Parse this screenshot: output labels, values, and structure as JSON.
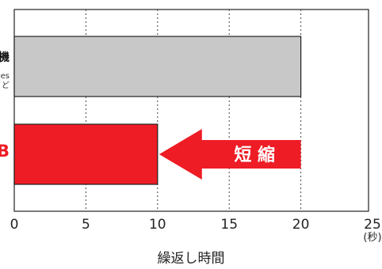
{
  "chart_data": {
    "type": "bar",
    "orientation": "horizontal",
    "xlabel": "繰返し時間",
    "x_unit_label": "(秒)",
    "xlim": [
      0,
      25
    ],
    "xticks": [
      "0",
      "5",
      "10",
      "15",
      "20",
      "25"
    ],
    "grid": "vertical dotted",
    "categories": [
      {
        "name_partial": "機",
        "sub_partial": [
          "es",
          "ど"
        ],
        "value": 20,
        "color": "#c8c8c8"
      },
      {
        "name_partial": "B",
        "value": 10,
        "color": "#ee1c25"
      }
    ],
    "annotation": {
      "text": "短 縮",
      "color": "#ee1c25",
      "from": 20,
      "to": 10
    }
  }
}
